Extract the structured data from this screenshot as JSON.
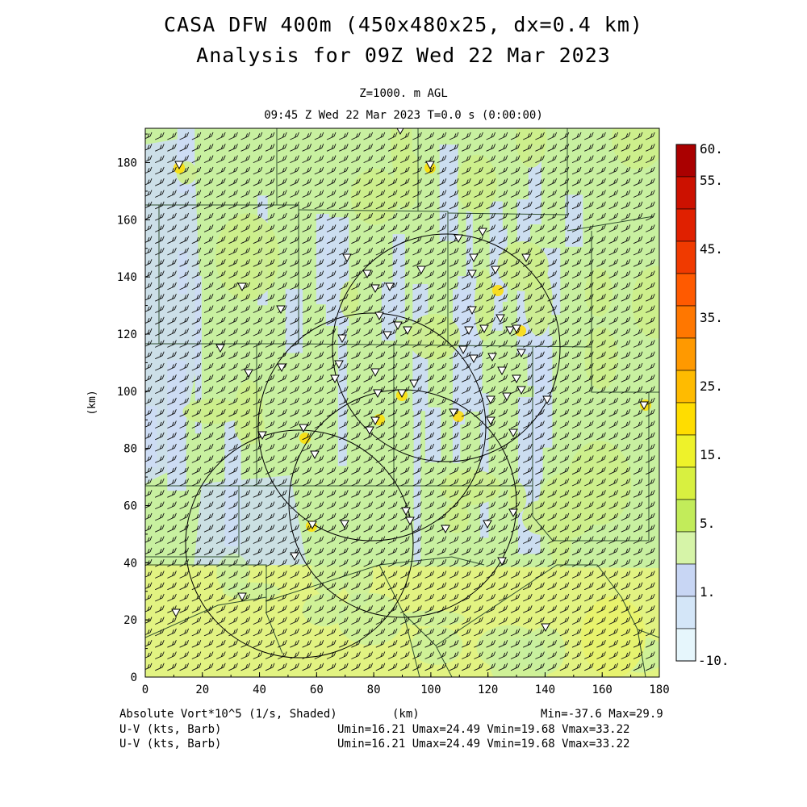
{
  "header": {
    "title_line1": "CASA DFW 400m (450x480x25, dx=0.4 km)",
    "title_line2": "Analysis for 09Z Wed 22 Mar 2023",
    "level": "Z=1000. m AGL",
    "valid_time": "09:45 Z Wed 22 Mar 2023    T=0.0 s (0:00:00)"
  },
  "axes": {
    "x_ticks": [
      "0",
      "20",
      "40",
      "60",
      "80",
      "100",
      "120",
      "140",
      "160",
      "180"
    ],
    "y_ticks": [
      "0",
      "20",
      "40",
      "60",
      "80",
      "100",
      "120",
      "140",
      "160",
      "180"
    ],
    "y_label": "(km)",
    "x_label": "(km)",
    "x_range": [
      0,
      180
    ],
    "y_range": [
      0,
      192
    ]
  },
  "colorbar": {
    "labels": [
      "60.",
      "55.",
      "45.",
      "35.",
      "25.",
      "15.",
      "5.",
      "1.",
      "-10."
    ],
    "colors": [
      "#aa0000",
      "#cc1100",
      "#e02000",
      "#f03a00",
      "#ff5a00",
      "#ff7700",
      "#ff9900",
      "#ffbb00",
      "#ffdd00",
      "#eef22a",
      "#d8f040",
      "#c2ec5a",
      "#d6f4a8",
      "#c8d6f4",
      "#d4e6f8",
      "#e6f6fc"
    ]
  },
  "map": {
    "field_colors": {
      "light": "#c8f0a0",
      "green": "#cdee8a",
      "blue": "#ccdcf4",
      "yellow": "#e6f37c"
    },
    "stations": 70
  },
  "footer": {
    "field_name": "Absolute Vort*10^5 (1/s, Shaded)",
    "x_unit": "(km)",
    "minmax": "Min=-37.6 Max=29.9",
    "barb1_name": "U-V (kts, Barb)",
    "barb1_stats": "Umin=16.21 Umax=24.49 Vmin=19.68 Vmax=33.22",
    "barb2_name": "U-V (kts, Barb)",
    "barb2_stats": "Umin=16.21 Umax=24.49 Vmin=19.68 Vmax=33.22"
  }
}
